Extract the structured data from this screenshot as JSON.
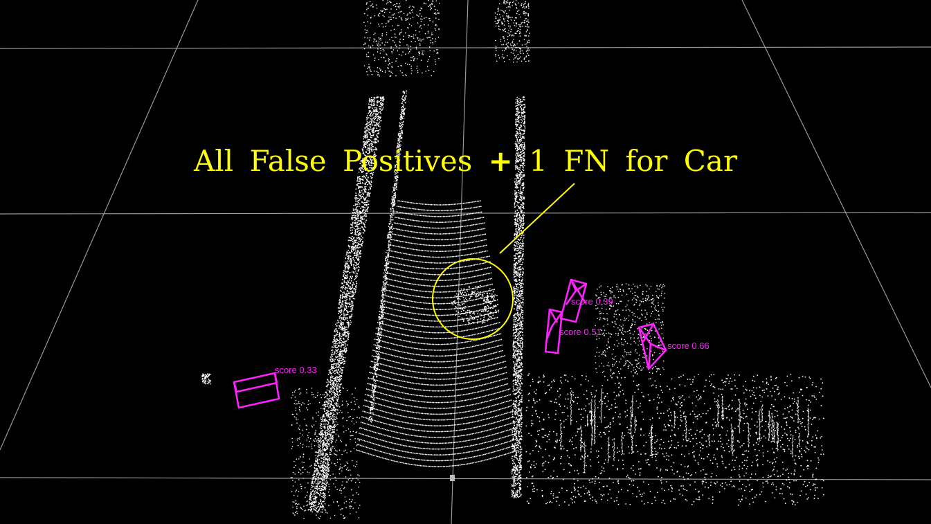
{
  "annotation": {
    "caption_part1": "All False Positives",
    "caption_plus": "+",
    "caption_part2": "1 FN for Car",
    "color": "#ffff00"
  },
  "detections": [
    {
      "label": "score 0.33"
    },
    {
      "label": "score 0.39"
    },
    {
      "label": "score 0.51"
    },
    {
      "label": "score 0.66"
    }
  ],
  "colors": {
    "box": "#ff22ff",
    "points": "#ffffff",
    "grid": "#9a9a9a",
    "background": "#000000"
  }
}
